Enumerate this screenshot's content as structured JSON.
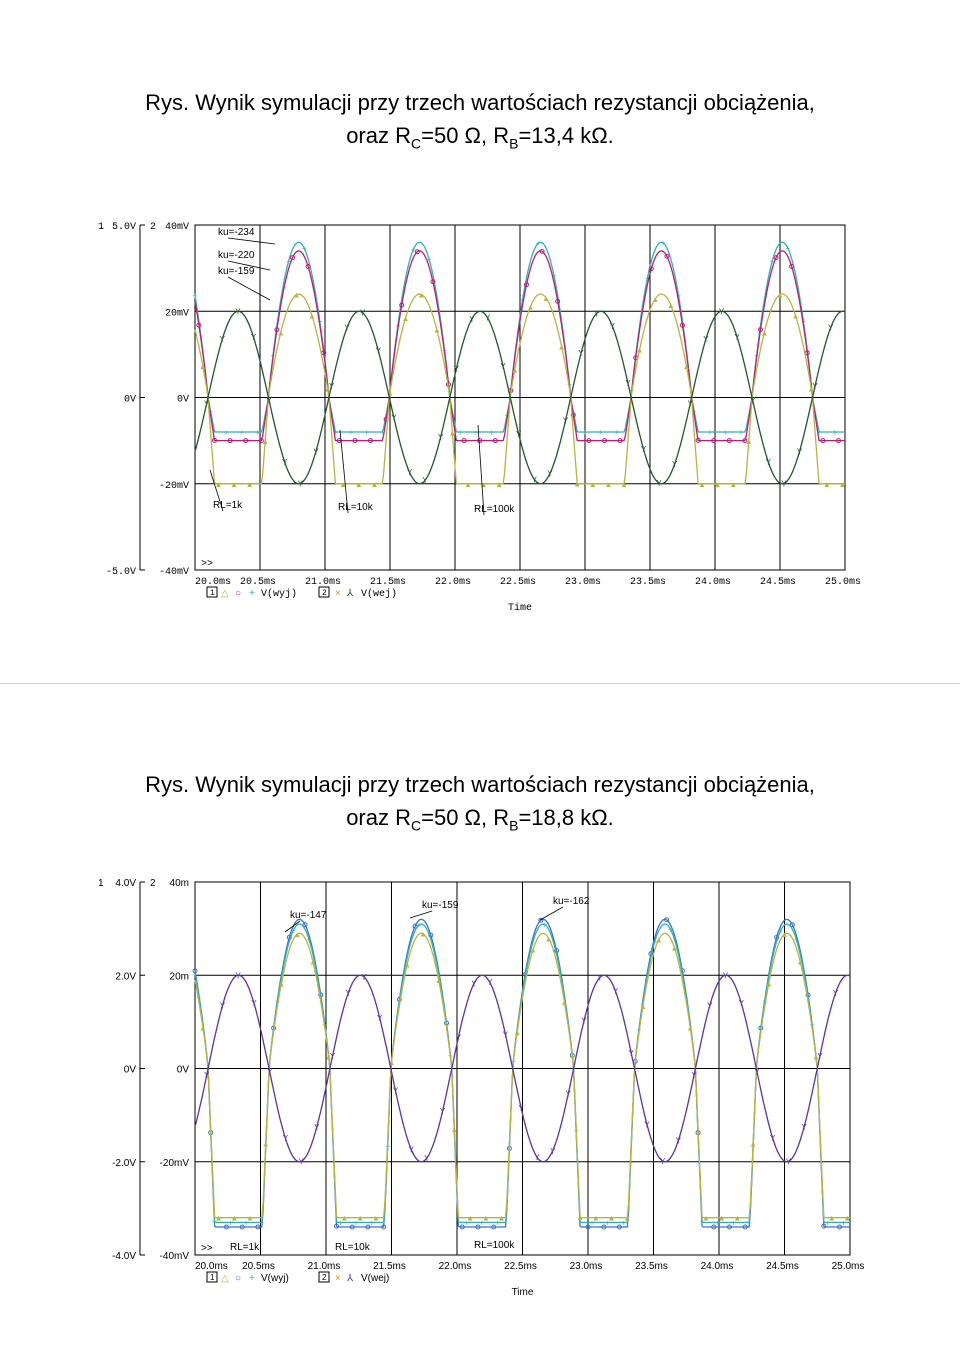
{
  "figure1": {
    "caption_line1": "Rys. Wynik symulacji przy trzech wartościach rezystancji obciążenia,",
    "caption_line2_pre": "oraz R",
    "caption_line2_sub1": "C",
    "caption_line2_mid": "=50 Ω, R",
    "caption_line2_sub2": "B",
    "caption_line2_post": "=13,4 kΩ."
  },
  "figure2": {
    "caption_line1": "Rys. Wynik symulacji przy trzech wartościach rezystancji obciążenia,",
    "caption_line2_pre": "oraz R",
    "caption_line2_sub1": "C",
    "caption_line2_mid": "=50 Ω, R",
    "caption_line2_sub2": "B",
    "caption_line2_post": "=18,8 kΩ."
  },
  "chart_data": [
    {
      "type": "line",
      "xlabel": "Time",
      "x_ticks": [
        "20.0ms",
        "20.5ms",
        "21.0ms",
        "21.5ms",
        "22.0ms",
        "22.5ms",
        "23.0ms",
        "23.5ms",
        "24.0ms",
        "24.5ms",
        "25.0ms"
      ],
      "xlim": [
        20.0,
        25.0
      ],
      "axis1_label": "1",
      "axis2_label": "2",
      "y1_ticks": [
        "5.0V",
        "0V",
        "-5.0V"
      ],
      "y1lim": [
        -5.0,
        5.0
      ],
      "y2_ticks": [
        "40mV",
        "20mV",
        "0V",
        "-20mV",
        "-40mV"
      ],
      "y2lim": [
        -40,
        40
      ],
      "more_marker": ">>",
      "legend": {
        "box1": "1",
        "trace1": "V(wyj)",
        "box2": "2",
        "trace2": "V(wej)"
      },
      "annotations": [
        "ku=-234",
        "ku=-220",
        "ku=-159",
        "RL=1k",
        "RL=10k",
        "RL=100k"
      ],
      "grid": true,
      "series": [
        {
          "name": "",
          "color": "#2bb5b0",
          "values": "V(wyj), RL=100k: ~+4.5 V peak, clipped near -1.0 V; period ~0.93 ms"
        },
        {
          "name": "",
          "color": "#c0197a",
          "values": "V(wyj), RL=10k: ~+4.2 V peak, clipped near -1.3 V"
        },
        {
          "name": "",
          "color": "#b8b63a",
          "values": "V(wyj), RL=1k: ~+3.0 V peak, clipped near -2.5 V"
        },
        {
          "name": "",
          "color": "#1e5a2a",
          "values": "V(wej): 20 mV amplitude sine, axis 2"
        }
      ]
    },
    {
      "type": "line",
      "xlabel": "Time",
      "x_ticks": [
        "20.0ms",
        "20.5ms",
        "21.0ms",
        "21.5ms",
        "22.0ms",
        "22.5ms",
        "23.0ms",
        "23.5ms",
        "24.0ms",
        "24.5ms",
        "25.0ms"
      ],
      "xlim": [
        20.0,
        25.0
      ],
      "axis1_label": "1",
      "axis2_label": "2",
      "y1_ticks": [
        "4.0V",
        "2.0V",
        "0V",
        "-2.0V",
        "-4.0V"
      ],
      "y1lim": [
        -4.0,
        4.0
      ],
      "y2_ticks": [
        "40m",
        "20m",
        "0V",
        "-20mV",
        "-40mV"
      ],
      "y2lim": [
        -40,
        40
      ],
      "more_marker": ">>",
      "legend": {
        "box1": "1",
        "trace1": "V(wyj)",
        "box2": "2",
        "trace2": "V(wej)"
      },
      "annotations": [
        "ku=-147",
        "ku=-159",
        "ku=-162",
        "RL=1k",
        "RL=10k",
        "RL=100k"
      ],
      "grid": true,
      "series": [
        {
          "name": "",
          "color": "#3a6fd8",
          "values": "V(wyj), RL=100k: ~+3.2 V peak, clipped near -3.3 V"
        },
        {
          "name": "",
          "color": "#2bb5b0",
          "values": "V(wyj), RL=10k: ~+3.1 V peak"
        },
        {
          "name": "",
          "color": "#b8b63a",
          "values": "V(wyj), RL=1k: ~+2.9 V peak"
        },
        {
          "name": "",
          "color": "#5a2fb5",
          "values": "V(wej): 20 mV amplitude sine, axis 2"
        }
      ]
    }
  ]
}
